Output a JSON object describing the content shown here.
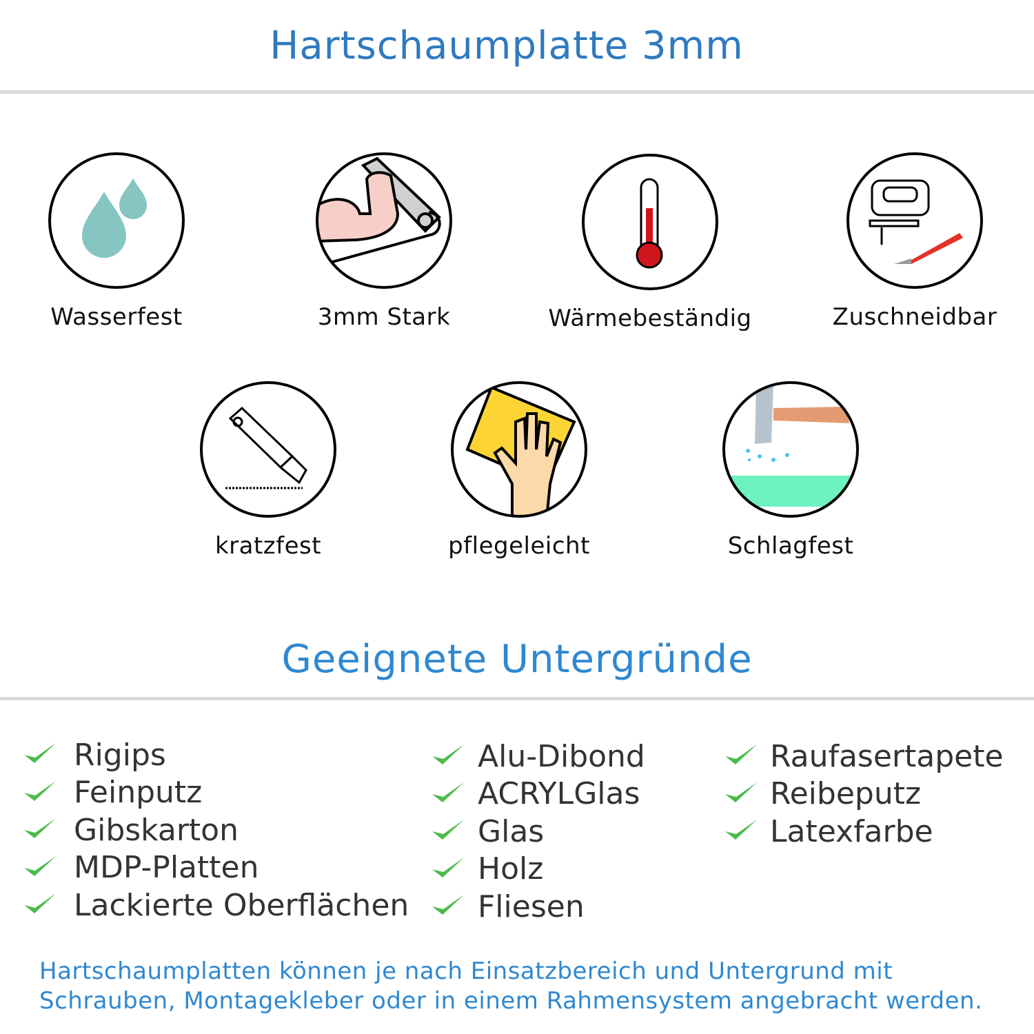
{
  "header": {
    "title": "Hartschaumplatte 3mm"
  },
  "features": [
    {
      "label": "Wasserfest",
      "icon": "water-drops-icon"
    },
    {
      "label": "3mm Stark",
      "icon": "flexed-arm-icon"
    },
    {
      "label": "Wärmebeständig",
      "icon": "thermometer-icon"
    },
    {
      "label": "Zuschneidbar",
      "icon": "jigsaw-knife-icon"
    },
    {
      "label": "kratzfest",
      "icon": "cutter-knife-icon"
    },
    {
      "label": "pflegeleicht",
      "icon": "cleaning-hand-icon"
    },
    {
      "label": "Schlagfest",
      "icon": "hammer-icon"
    }
  ],
  "surfaces": {
    "title": "Geeignete Untergründe",
    "columns": [
      [
        "Rigips",
        "Feinputz",
        "Gibskarton",
        "MDP-Platten",
        "Lackierte Oberflächen"
      ],
      [
        "Alu-Dibond",
        "ACRYLGlas",
        "Glas",
        "Holz",
        "Fliesen"
      ],
      [
        "Raufasertapete",
        "Reibeputz",
        "Latexfarbe"
      ]
    ]
  },
  "footer": {
    "line1": "Hartschaumplatten können je nach Einsatzbereich und Untergrund mit",
    "line2": "Schrauben, Montagekleber oder in einem Rahmensystem angebracht werden."
  },
  "colors": {
    "title": "#2f7abf",
    "accent": "#2f88d0",
    "check": "#4cbb4c",
    "rule": "#d9d9d9"
  }
}
